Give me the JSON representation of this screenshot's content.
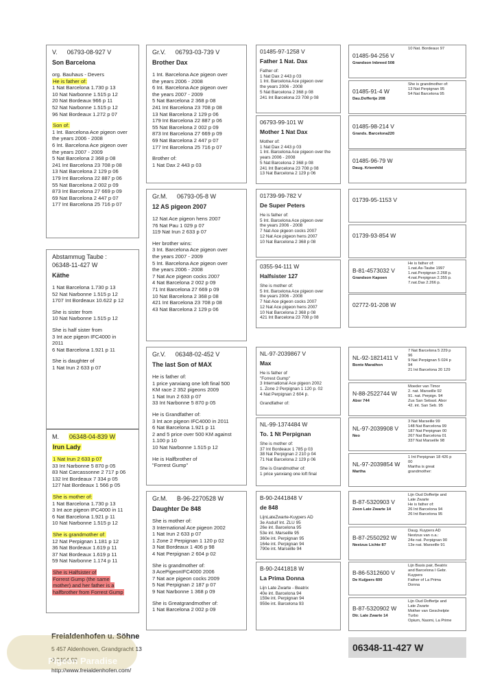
{
  "col1": [
    {
      "header": "V.",
      "ring": "06793-08-927 V",
      "name": "Son Barcelona",
      "paragraphs": [
        [
          "org. Bauhaus - Devers",
          {
            "text": "He is father of:",
            "highlight": "#ffff66"
          },
          "1 Nat Barcelona 1.730 p 13",
          "10 Nat Narbonne 1.515 p 12",
          "20 Nat Bordeaux 966 p 11",
          "52 Nat Narbonne 1.515 p 12",
          "96 Nat Bordeaux 1.272 p 07"
        ],
        [
          {
            "text": "Son of:",
            "highlight": "#ffff66"
          },
          "1 Int. Barcelona Ace pigeon over",
          "the years 2006 - 2008",
          "6 Int. Barcelona Ace pigeon over",
          "the years 2007 - 2009",
          "5 Nat Barcelona 2 368 p 08",
          "241 Int Barcelona 23 708 p 08",
          "13 Nat Barcelona 2 129 p 06",
          "179 Int Barcelona 22 887 p 06",
          "55 Nat Barcelona 2 002 p 09",
          "873 Int Barcelona 27 669 p 09",
          "69 Nat Barcelona 2 447 p 07",
          "177 Int Barcelona 25 716 p 07"
        ]
      ]
    },
    {
      "header": "Abstammug Taube :",
      "ring": "06348-11-427 W",
      "name": "Käthe",
      "paragraphs": [
        [
          "1 Nat Barcelona 1.730 p 13",
          "52 Nat Narbonne 1.515 p 12",
          "1707 Int Bordeaux 10.622 p 12"
        ],
        [
          "She is sister from",
          "10 Nat Narbonne 1.515 p 12"
        ],
        [
          "She is half sister from",
          "3 Int ace pigeon IFC4000 in",
          "2011",
          "6 Nat Barcelona 1.921 p 11"
        ],
        [
          "She is daughter of",
          "1 Nat Irun 2 633 p 07"
        ]
      ]
    },
    {
      "header": "M.",
      "ring": {
        "text": "06348-04-839 W",
        "highlight": "#ffff66"
      },
      "name": {
        "text": "Irun Lady",
        "highlight": "#ffff66"
      },
      "paragraphs": [
        [
          {
            "text": "1 Nat Irun 2 633 p 07",
            "highlight": "#ffff66"
          },
          "33 Int Narbonne 5 870 p 05",
          "83 Nat Carcassonne 2 717 p 06",
          "132 Int  Bordeaux 7 334 p 05",
          "127 Nat Bordeaux 1 566 p 05"
        ],
        [
          {
            "text": "She is mother of:",
            "highlight": "#ffff66"
          },
          "1 Nat Barcelona 1.730 p 13",
          "3 Int ace pigeon IFC4000 in 11",
          "6 Nat Barcelona 1.921 p 11",
          "10 Nat Narbonne 1.515 p 12"
        ],
        [
          {
            "text": "She is grandmother of:",
            "highlight": "#ffff66"
          },
          "12 Nat Perpignan 1.181 p 12",
          "36 Nat Bordeaux 1.619 p 11",
          "37 Nat Bordeaux 1.619 p 11",
          "59 Nat Narbonne 1.174 p 11"
        ],
        [
          {
            "text": "She is Halfsister of",
            "highlight": "#f08080"
          },
          {
            "text": "Forrest Gump (the same",
            "highlight": "#f08080"
          },
          {
            "text": "mother) and her father is a",
            "highlight": "#f08080"
          },
          {
            "text": "halfbrother from Forrest Gump",
            "highlight": "#f08080"
          }
        ]
      ]
    }
  ],
  "col2": [
    {
      "header": "Gr.V.",
      "ring": "06793-03-739 V",
      "name": "Brother Dax",
      "paragraphs": [
        [
          "1 Int. Barcelona Ace pigeon over",
          "the years 2006 - 2008",
          "6 Int. Barcelona Ace pigeon over",
          "the years 2007 - 2009",
          "5 Nat Barcelona 2 368 p 08",
          "241 Int Barcelona 23 708 p 08",
          "13 Nat Barcelona 2 129 p 06",
          "179 Int Barcelona 22 887 p 06",
          "55 Nat Barcelona 2 002 p 09",
          "873 Int Barcelona 27 669 p 09",
          "69 Nat Barcelona 2 447 p 07",
          "177 Int Barcelona 25 716 p 07"
        ],
        [
          "Brother of:",
          "1 Nat Dax 2 443 p 03"
        ]
      ]
    },
    {
      "header": "Gr.M.",
      "ring": "06793-05-8 W",
      "name": "12 AS pigeon 2007",
      "paragraphs": [
        [
          "12 Nat Ace pigeon hens 2007",
          "76 Nat Pau 1 029 p 07",
          "119 Nat Irun 2 633 p 07"
        ],
        [
          "Her brother wins:",
          "3   Int. Barcelona Ace pigeon over",
          "the years 2007 - 2009",
          "5  Int. Barcelona Ace pigeon over",
          "the years 2006 - 2008",
          "7 Nat Ace pigeon cocks 2007",
          "4 Nat Barcelona 2 002 p 09",
          "71 Int Barcelona 27 669 p 09",
          "10 Nat Barcelona 2 368 p 08",
          "421 Int Barcelona 23 708 p 08",
          "43 Nat Barcelona 2 129 p 06"
        ]
      ]
    },
    {
      "header": "Gr.V.",
      "ring": "06348-02-452 V",
      "name": "The last Son of MAX",
      "paragraphs": [
        [
          "He is father of:",
          "1 price yanxiang one loft final 500",
          "KM race 2 352 pigeons 2009",
          "1 Nat Irun 2 633 p 07",
          "33 Int Narbonne 5 870 p 05"
        ],
        [
          "He is Grandfather of:",
          "3 Int ace pigeon IFC4000 in 2011",
          "6 Nat Barcelona 1.921 p 11",
          "2 and 5 price over 500 KM against",
          "1.100 p 10",
          "10 Nat Narbonne 1.515 p 12"
        ],
        [
          "He is Halfbrother of",
          "\"Forrest Gump\""
        ]
      ]
    },
    {
      "header": "Gr.M.",
      "ring": "B-96-2270528 W",
      "name": "Daughter De 848",
      "paragraphs": [
        [
          "She is mother of:",
          "3 International Ace pigeon 2002",
          "1 Nat Irun 2 633 p 07",
          "1 Zone 2 Perpignan 1 120 p 02",
          "3 Nat Bordeaux 1 406 p 98",
          "4 Nat Perpignan 2 604 p 02"
        ],
        [
          "She is grandmother of:",
          "3 AcePigeonIFC4000    2006",
          "7 Nat ace pigeon cocks 2009",
          "5 Nat Perpignan 2 187 p 07",
          "9 Nat Narbonne 1 368 p 09"
        ],
        [
          "She is Greatgrandmother of:",
          "1 Nat Barcelona 2 002 p 09"
        ]
      ]
    }
  ],
  "col3": [
    {
      "ring": "01485-97-1258 V",
      "name": "Father 1 Nat. Dax",
      "paragraphs": [
        [
          "Father of:",
          "1 Nat Dax 2 443 p 03",
          "1 Int. Barcelona Ace pigeon over",
          "the years 2006 - 2008",
          "5 Nat Barcelona 2 368 p 08",
          "241 Int Barcelona 23 708 p 08"
        ]
      ]
    },
    {
      "ring": "06793-99-101 W",
      "name": "Mother 1 Nat Dax",
      "paragraphs": [
        [
          "Mother of:",
          "1 Nat Dax 2 443 p 03",
          "1 Int. Barcelona Ace pigeon over the",
          "years 2006 - 2008",
          "5 Nat Barcelona 2 368 p 08",
          "241 Int Barcelona 23 708 p 08",
          "13 Nat Barcelona 2 129 p 06"
        ]
      ]
    },
    {
      "ring": "01739-99-782 V",
      "name": "De Super Peters",
      "paragraphs": [
        [
          "He is father of:",
          "5  Int. Barcelona Ace pigeon over",
          "the years 2006 - 2008",
          "7 Nat Ace pigeon cocks 2007",
          "12 Nat Ace pigeon hens 2007",
          "10 Nat Barcelona 2 368 p 08"
        ]
      ]
    },
    {
      "ring": "0355-94-111 W",
      "name": "Halfsister 127",
      "paragraphs": [
        [
          "She is mother of:",
          "5  Int. Barcelona Ace pigeon over",
          "the years 2006 - 2008",
          "7 Nat Ace pigeon cocks 2007",
          "12 Nat Ace pigeon hens 2007",
          "10 Nat Barcelona 2 368 p 08",
          "421 Int Barcelona 23 708 p 08"
        ]
      ]
    },
    {
      "ring": "NL-97-2039867 V",
      "name": "Max",
      "paragraphs": [
        [
          "He is father of",
          "\"Forrest Gump\"",
          "3 International Ace pigeon 2002",
          "1. Zone 2 Perpignan 1 120 p. 02",
          "4 Nat Perpignan 2 604 p."
        ],
        [
          "Grandfather of:"
        ]
      ]
    },
    {
      "ring": "NL-99-1374484 W",
      "name": "To. 1 Nt Perpignan",
      "paragraphs": [
        [
          "She is mother of:",
          "37 Int Bordeaux 1 785 p 03",
          "38 Nat Perpignan 2 210 p 04",
          "71 Nat Barcelona 2 129 p 06"
        ],
        [
          "She is Grandmother of:",
          "1 price yanxiang one loft final"
        ]
      ]
    },
    {
      "ring": "B-90-2441848 V",
      "name": "de 848",
      "paragraphs": [
        [
          "LijnLateZwarte-Kuypers AD",
          "3e Asduif Int. ZLU 95",
          "26e int. Barcelona 95",
          "53e int. Marseille 95",
          "360e int. Perpignan 95",
          "164e int. Perpignan 94",
          "790e int. Marseille 94"
        ]
      ]
    },
    {
      "ring": "B-90-2441818 W",
      "name": "La Prima Donna",
      "paragraphs": [
        [
          "Lijn Late Zwarte - Beatrix",
          "40e int. Barcelona 94",
          "159e int. Perpignan 94",
          "959e int. Barcelona 93"
        ]
      ]
    }
  ],
  "col4": [
    {
      "ring": "01485-94-256 V",
      "name": "Grandson Inbreed 508",
      "notes": [
        "10 Nat. Bordeaux 97"
      ]
    },
    {
      "ring": "01485-91-4 W",
      "name": "Dau.Doffertje 208",
      "notes": [
        "She is grandmother of:",
        "13 Nat Perpignan 95",
        "54 Nat Barcelona 95"
      ]
    },
    {
      "ring": "01485-98-214 V",
      "name": "Grands. Barcelona220"
    },
    {
      "ring": "01485-96-79 W",
      "name": "Daug. Kriemhild"
    },
    {
      "ring": "01739-95-1153 V"
    },
    {
      "ring": "01739-93-854 W"
    },
    {
      "ring": "B-81-4573032 V",
      "name": "Grandson Kapoen",
      "notes": [
        "He is father of:",
        "1.nat.As-Taube 1997",
        "1.nat.Perpignan 2.268 p.",
        "4.nat.Perpignan 2.355 p.",
        "7.nat.Dax 2.266 p."
      ]
    },
    {
      "ring": "02772-91-208 W"
    },
    {
      "ring": "NL-92-1821411 V",
      "name": "Bonte Marathon",
      "notes": [
        "7 Nat Barcelona 5 229 p",
        "96",
        "9 Nat Perpignan 5 024 p",
        "94",
        "21 Int Barcelona 20 129"
      ]
    },
    {
      "ring": "N-88-2522744 W",
      "name": "Abor 744",
      "notes": [
        "Moeder van Timor",
        "2. nat. Marseille 92",
        "91. nat. Perpign. 94",
        "Zus San Sebast. Abor",
        "42. int. San Seb. 95"
      ]
    },
    {
      "ring": "NL-97-2039908 V",
      "name": "Neo",
      "notes": [
        "3 Nat Marseille 99",
        "148 Nat Barcelona 99",
        "187 Nat Perpignan 00",
        "267 Nat Barcelona 01",
        "337 Nat Marseille 98"
      ]
    },
    {
      "ring": "NL-97-2039854 W",
      "name": "Martha",
      "notes": [
        "1 Int Perpignan 18 426 p",
        "00",
        "Martha is great",
        "grandmother:"
      ]
    },
    {
      "ring": "B-87-5320903 V",
      "name": "Zoon Late Zwarte 14",
      "notes": [
        "Lijn Oud Doffertje and",
        "Late Zwarte",
        "He is father of:",
        "26 Int Barcelona 94",
        "26 Int Barcelona 95"
      ]
    },
    {
      "ring": "B-87-2550292 W",
      "name": "Nestzus Lichte 87",
      "notes": [
        "Daug. Kuypers AD",
        "Nestzus van o.a.:",
        "24e nat. Perpignan 90",
        "13e nat. Marseille 91"
      ]
    },
    {
      "ring": "B-86-5312600 V",
      "name": "De Kuijpers 600",
      "notes": [
        "Lijn Basis pair, Beatrix",
        "and Barcelona I Gebr.",
        "Kuypers",
        "Father of La Prima",
        "Donna"
      ]
    },
    {
      "ring": "B-87-5320902 W",
      "name": "Dtr. Late Zwarte 14",
      "notes": [
        "Lijn Oud Doffertje and",
        "Late Zwarte",
        "Mother van Geschelpte",
        "Turbo",
        "Opium, Naomi, La Prime"
      ]
    }
  ],
  "footer": {
    "breeder": "Freialdenhofen u. Söhne",
    "address": "5 457 Aldenhoven, Grandgracht 13",
    "phone": "0 2464 98",
    "website": "http://www.freialdenhofen.com/",
    "watermark": "Pigeon Paradise",
    "ring": "06348-11-427 W"
  }
}
